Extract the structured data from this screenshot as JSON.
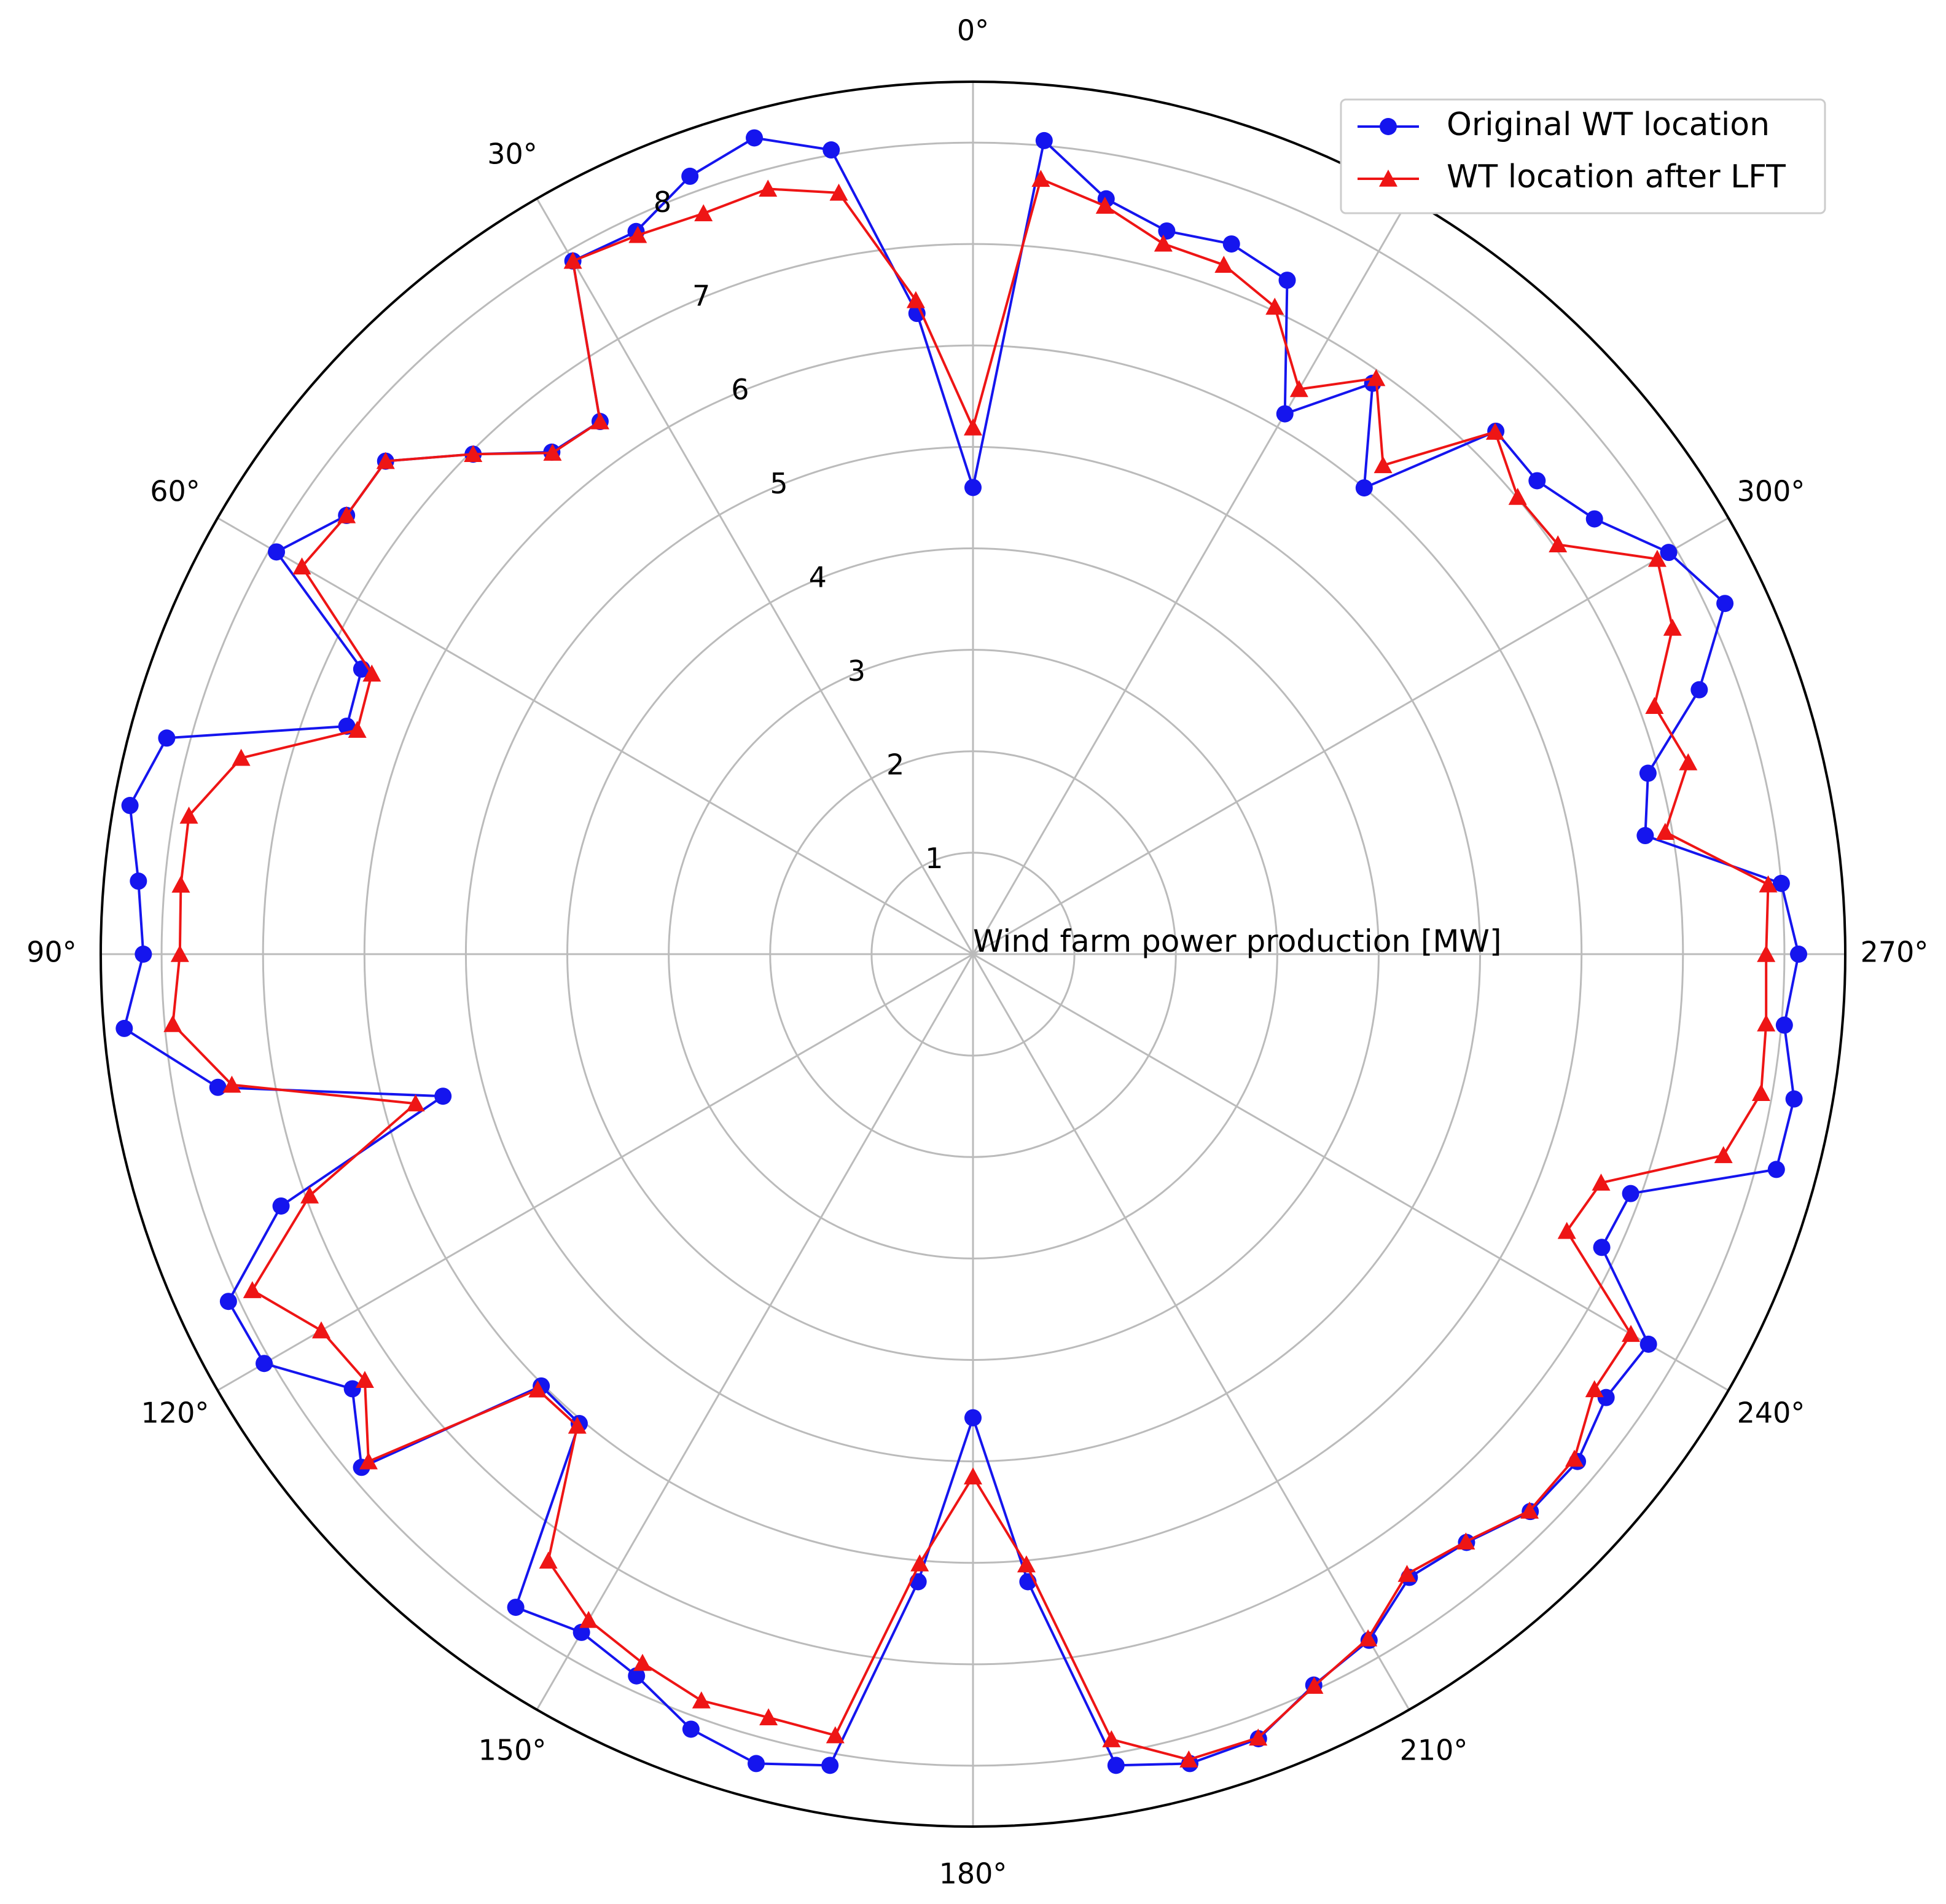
{
  "chart_data": {
    "type": "polar-line",
    "center_label": "Wind farm power production [MW]",
    "angular_tick_labels": [
      "0°",
      "30°",
      "60°",
      "90°",
      "120°",
      "150°",
      "180°",
      "210°",
      "240°",
      "270°",
      "300°"
    ],
    "angular_ticks_deg": [
      0,
      30,
      60,
      90,
      120,
      150,
      180,
      210,
      240,
      270,
      300
    ],
    "angular_direction": "counterclockwise",
    "zero_location": "top",
    "radial_tick_labels": [
      "1",
      "2",
      "3",
      "4",
      "5",
      "6",
      "7",
      "8"
    ],
    "radial_ticks": [
      1,
      2,
      3,
      4,
      5,
      6,
      7,
      8
    ],
    "rlim": [
      0,
      8.6
    ],
    "grid": true,
    "legend": "top-right",
    "colors": {
      "original": "#1515ee",
      "after_lft": "#ee1515",
      "grid": "#bbbbbb"
    },
    "angles_deg": [
      0,
      5,
      10,
      15,
      20,
      25,
      30,
      35,
      40,
      45,
      50,
      55,
      60,
      65,
      70,
      75,
      80,
      85,
      90,
      95,
      100,
      105,
      110,
      115,
      120,
      125,
      130,
      135,
      140,
      145,
      150,
      155,
      160,
      165,
      170,
      175,
      180,
      185,
      190,
      195,
      200,
      205,
      210,
      215,
      220,
      225,
      230,
      235,
      240,
      245,
      250,
      255,
      260,
      265,
      270,
      275,
      280,
      285,
      290,
      295,
      300,
      305,
      310,
      315,
      320,
      325,
      330,
      335,
      340,
      345,
      350,
      355
    ],
    "series": [
      {
        "name": "Original WT location",
        "marker": "circle",
        "values": [
          4.6,
          6.34,
          8.05,
          8.33,
          8.16,
          7.86,
          7.89,
          6.41,
          6.46,
          6.97,
          7.56,
          7.54,
          7.93,
          6.65,
          6.57,
          8.23,
          8.44,
          8.26,
          8.18,
          8.4,
          7.56,
          5.41,
          7.26,
          8.1,
          8.07,
          7.47,
          7.87,
          6.02,
          6.04,
          7.86,
          7.72,
          7.85,
          8.13,
          8.26,
          8.12,
          6.21,
          4.57,
          6.21,
          8.12,
          8.26,
          8.23,
          7.95,
          7.81,
          7.5,
          7.57,
          7.77,
          7.78,
          7.62,
          7.69,
          6.84,
          6.9,
          8.2,
          8.22,
          8.03,
          8.14,
          8.0,
          6.73,
          6.89,
          7.62,
          8.18,
          7.92,
          7.48,
          7.26,
          7.29,
          6.0,
          6.87,
          6.15,
          7.33,
          7.45,
          7.38,
          7.56,
          8.05
        ]
      },
      {
        "name": "WT location after LFT",
        "marker": "triangle",
        "values": [
          5.19,
          6.47,
          7.62,
          7.81,
          7.77,
          7.82,
          7.89,
          6.41,
          6.45,
          6.97,
          7.56,
          7.54,
          7.64,
          6.54,
          6.46,
          7.47,
          7.85,
          7.84,
          7.82,
          7.92,
          7.42,
          5.69,
          6.96,
          7.84,
          7.42,
          7.32,
          7.78,
          6.07,
          6.07,
          7.3,
          7.58,
          7.71,
          7.83,
          7.79,
          7.82,
          6.03,
          5.15,
          6.04,
          7.86,
          8.22,
          8.22,
          7.96,
          7.79,
          7.46,
          7.56,
          7.76,
          7.74,
          7.48,
          7.49,
          6.46,
          6.59,
          7.66,
          7.89,
          7.85,
          7.82,
          7.87,
          6.93,
          7.3,
          7.15,
          7.61,
          7.79,
          7.04,
          7.01,
          7.28,
          6.29,
          6.93,
          6.43,
          7.04,
          7.23,
          7.25,
          7.49,
          7.67
        ]
      }
    ]
  }
}
